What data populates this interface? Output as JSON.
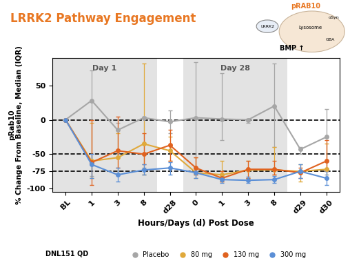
{
  "chart_data": {
    "type": "line",
    "title": "LRRK2 Pathway Engagement",
    "x_label": "Hours/Days (d) Post Dose",
    "y_label": "pRab10\n% Change From Baseline, Median (IQR)",
    "categories": [
      "BL",
      "1",
      "3",
      "8",
      "d28",
      "0",
      "1",
      "3",
      "8",
      "d29",
      "d30"
    ],
    "ylim": [
      -105,
      90
    ],
    "yticks": [
      50,
      0,
      -50,
      -75,
      -100
    ],
    "reference_lines": [
      0,
      -50,
      -75
    ],
    "regions": [
      {
        "label": "Day 1",
        "from": 0,
        "to": 3
      },
      {
        "label": "Day 28",
        "from": 5,
        "to": 8
      }
    ],
    "legend": "lower center",
    "legend_title": "DNL151 QD",
    "marker": "o",
    "series": [
      {
        "name": "Placebo",
        "color": "#a6a6a6",
        "values": [
          0,
          28,
          -15,
          3,
          -3,
          3,
          1,
          0,
          20,
          -43,
          -25
        ],
        "low": [
          0,
          -82,
          -50,
          -70,
          -20,
          -80,
          -30,
          -5,
          -40,
          -50,
          -80
        ],
        "high": [
          0,
          72,
          -5,
          5,
          14,
          84,
          68,
          2,
          82,
          -40,
          16
        ]
      },
      {
        "name": "80 mg",
        "color": "#e0a93b",
        "values": [
          0,
          -60,
          -55,
          -35,
          -45,
          -77,
          -80,
          -73,
          -73,
          -75,
          -72
        ],
        "low": [
          0,
          -85,
          -80,
          -80,
          -60,
          -85,
          -90,
          -85,
          -80,
          -90,
          -85
        ],
        "high": [
          0,
          -5,
          -20,
          82,
          -25,
          -55,
          -60,
          -60,
          -40,
          -65,
          -35
        ]
      },
      {
        "name": "130 mg",
        "color": "#e0621f",
        "values": [
          0,
          -62,
          -45,
          -50,
          -37,
          -70,
          -85,
          -72,
          -72,
          -77,
          -60
        ],
        "low": [
          0,
          -95,
          -70,
          -65,
          -60,
          -80,
          -90,
          -85,
          -80,
          -85,
          -75
        ],
        "high": [
          0,
          0,
          5,
          -20,
          -15,
          -55,
          -75,
          -60,
          -60,
          -70,
          -30
        ]
      },
      {
        "name": "300 mg",
        "color": "#5b8fd6",
        "values": [
          0,
          -65,
          -80,
          -73,
          -70,
          -77,
          -87,
          -88,
          -87,
          -75,
          -85
        ],
        "low": [
          0,
          -85,
          -90,
          -80,
          -80,
          -85,
          -92,
          -92,
          -92,
          -85,
          -95
        ],
        "high": [
          0,
          -50,
          -70,
          -65,
          -62,
          -70,
          -82,
          -83,
          -82,
          -65,
          -75
        ]
      }
    ],
    "inset_labels": {
      "marker": "pRAB10",
      "kinase": "LRRK2",
      "organelle": "Lysosome",
      "protein": "αSyn",
      "enzyme": "GBA",
      "lipid": "BMP ↑"
    }
  }
}
